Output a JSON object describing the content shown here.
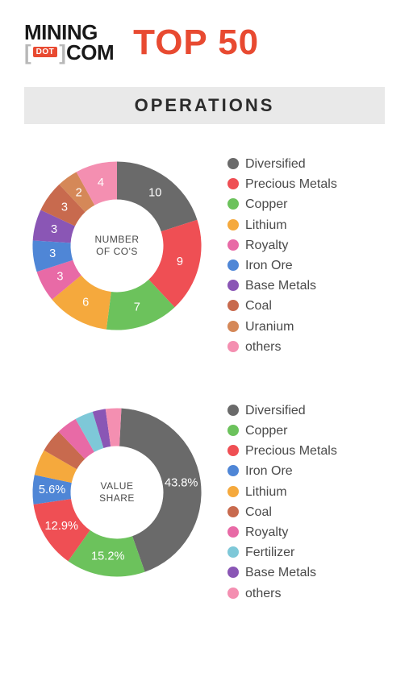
{
  "header": {
    "logo_line1": "MINING",
    "logo_dot": "DOT",
    "logo_line2": "COM",
    "top50": "TOP 50"
  },
  "title": "OPERATIONS",
  "donut_geometry": {
    "outer_radius": 100,
    "inner_radius": 55,
    "label_radius": 77
  },
  "chart1": {
    "center_label": "NUMBER\nOF CO'S",
    "start_angle_deg": -90,
    "slices": [
      {
        "label": "Diversified",
        "value": 10,
        "display": "10",
        "color": "#6a6a6a"
      },
      {
        "label": "Precious Metals",
        "value": 9,
        "display": "9",
        "color": "#ef4f54"
      },
      {
        "label": "Copper",
        "value": 7,
        "display": "7",
        "color": "#6cc25c"
      },
      {
        "label": "Lithium",
        "value": 6,
        "display": "6",
        "color": "#f5a93d"
      },
      {
        "label": "Royalty",
        "value": 3,
        "display": "3",
        "color": "#e86aa6"
      },
      {
        "label": "Iron Ore",
        "value": 3,
        "display": "3",
        "color": "#4f86d6"
      },
      {
        "label": "Base Metals",
        "value": 3,
        "display": "3",
        "color": "#8a56b5"
      },
      {
        "label": "Coal",
        "value": 3,
        "display": "3",
        "color": "#c86a4e"
      },
      {
        "label": "Uranium",
        "value": 2,
        "display": "2",
        "color": "#d58858"
      },
      {
        "label": "others",
        "value": 4,
        "display": "4",
        "color": "#f48fb1"
      }
    ]
  },
  "chart2": {
    "center_label": "VALUE\nSHARE",
    "start_angle_deg": -87,
    "slices": [
      {
        "label": "Diversified",
        "value": 43.8,
        "display": "43.8%",
        "color": "#6a6a6a"
      },
      {
        "label": "Copper",
        "value": 15.2,
        "display": "15.2%",
        "color": "#6cc25c"
      },
      {
        "label": "Precious Metals",
        "value": 12.9,
        "display": "12.9%",
        "color": "#ef4f54"
      },
      {
        "label": "Iron Ore",
        "value": 5.6,
        "display": "5.6%",
        "color": "#4f86d6"
      },
      {
        "label": "Lithium",
        "value": 5.0,
        "display": "",
        "color": "#f5a93d"
      },
      {
        "label": "Coal",
        "value": 4.5,
        "display": "",
        "color": "#c86a4e"
      },
      {
        "label": "Royalty",
        "value": 4.0,
        "display": "",
        "color": "#e86aa6"
      },
      {
        "label": "Fertilizer",
        "value": 3.5,
        "display": "",
        "color": "#7ec8d8"
      },
      {
        "label": "Base Metals",
        "value": 2.5,
        "display": "",
        "color": "#8a56b5"
      },
      {
        "label": "others",
        "value": 3.0,
        "display": "",
        "color": "#f48fb1"
      }
    ]
  }
}
